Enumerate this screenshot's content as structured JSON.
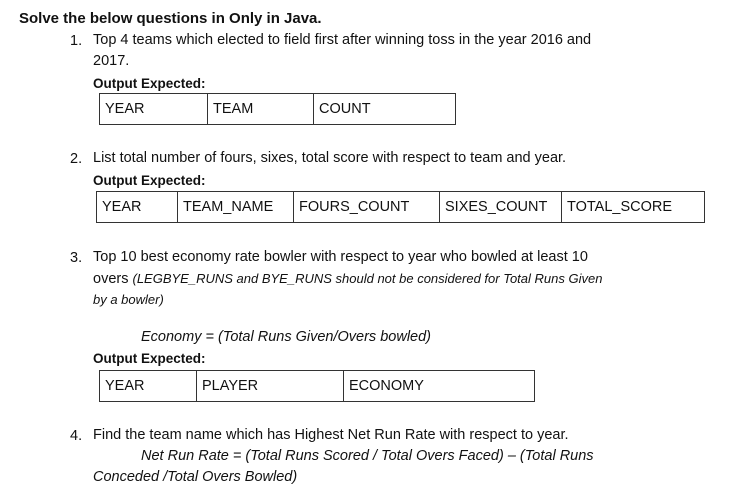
{
  "heading": "Solve the below questions in Only in Java.",
  "output_label": "Output Expected:",
  "questions": [
    {
      "number": "1.",
      "line1": "Top 4 teams which elected to field first after winning toss in the year 2016 and",
      "line2": "2017.",
      "columns": [
        "YEAR",
        "TEAM",
        "COUNT"
      ]
    },
    {
      "number": "2.",
      "line1": "List total number of fours, sixes, total score with respect to team and year.",
      "columns": [
        "YEAR",
        "TEAM_NAME",
        "FOURS_COUNT",
        "SIXES_COUNT",
        "TOTAL_SCORE"
      ]
    },
    {
      "number": "3.",
      "line1": "Top 10 best economy rate bowler with respect to year who bowled at least 10",
      "line2_prefix": "overs ",
      "line2_note": "(LEGBYE_RUNS and BYE_RUNS should not be considered for Total Runs Given",
      "line3_note": "by a bowler)",
      "formula": "Economy = (Total Runs Given/Overs bowled)",
      "columns": [
        "YEAR",
        "PLAYER",
        "ECONOMY"
      ]
    },
    {
      "number": "4.",
      "line1": "Find the team name which has Highest Net Run Rate with respect to year.",
      "formula_line1": "Net Run Rate = (Total Runs Scored / Total Overs Faced) – (Total Runs",
      "formula_line2": "Conceded /Total Overs Bowled)"
    }
  ]
}
